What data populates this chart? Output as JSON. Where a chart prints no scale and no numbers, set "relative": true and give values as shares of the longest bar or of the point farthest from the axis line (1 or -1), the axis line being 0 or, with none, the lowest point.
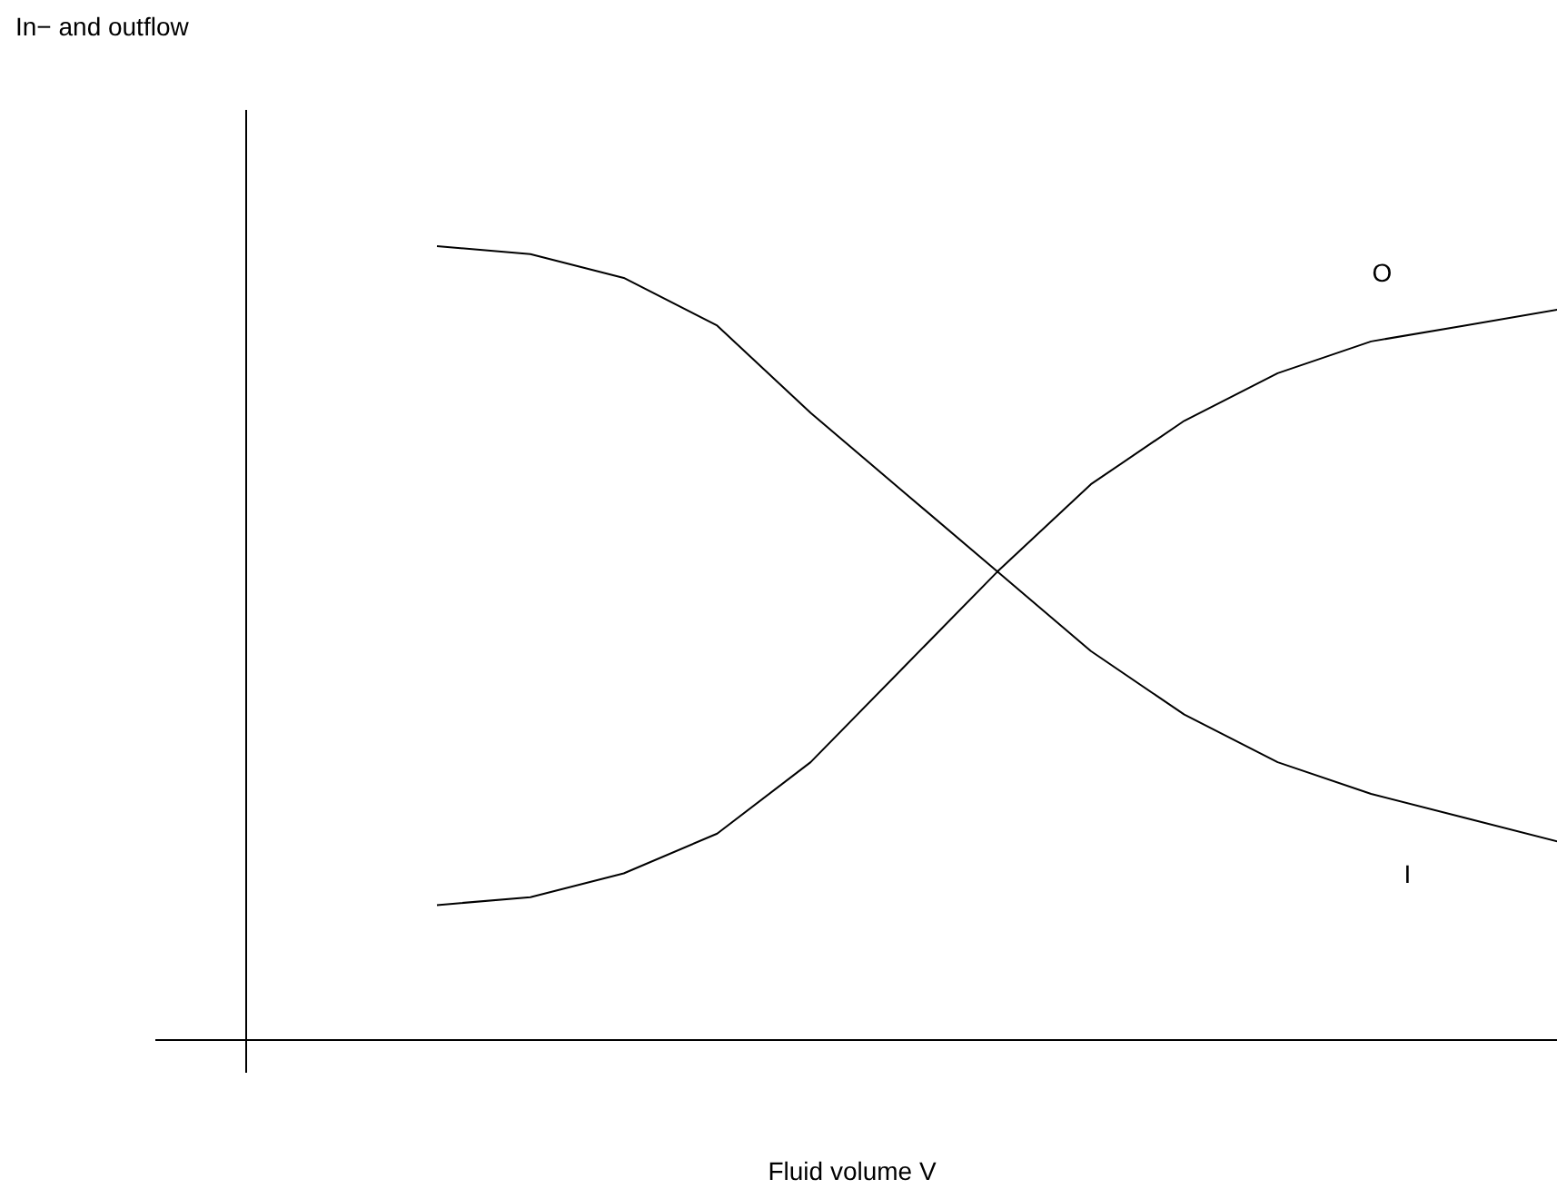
{
  "chart_data": {
    "type": "line",
    "relative": true,
    "xlabel": "Fluid volume V",
    "annotations": [
      "In− and outflow"
    ],
    "categories": [
      null,
      null,
      null,
      null,
      null,
      null,
      null,
      null,
      null,
      null,
      null,
      null,
      null
    ],
    "series": [
      {
        "name": "O",
        "color": "#000000",
        "values": [
          0.17,
          0.18,
          0.21,
          0.26,
          0.35,
          0.47,
          0.59,
          0.7,
          0.78,
          0.84,
          0.88,
          0.9,
          0.92
        ]
      },
      {
        "name": "I",
        "color": "#000000",
        "values": [
          1.0,
          0.99,
          0.96,
          0.9,
          0.79,
          0.69,
          0.59,
          0.49,
          0.41,
          0.35,
          0.31,
          0.28,
          0.25
        ]
      }
    ],
    "marker": "none",
    "line_style": "solid"
  }
}
